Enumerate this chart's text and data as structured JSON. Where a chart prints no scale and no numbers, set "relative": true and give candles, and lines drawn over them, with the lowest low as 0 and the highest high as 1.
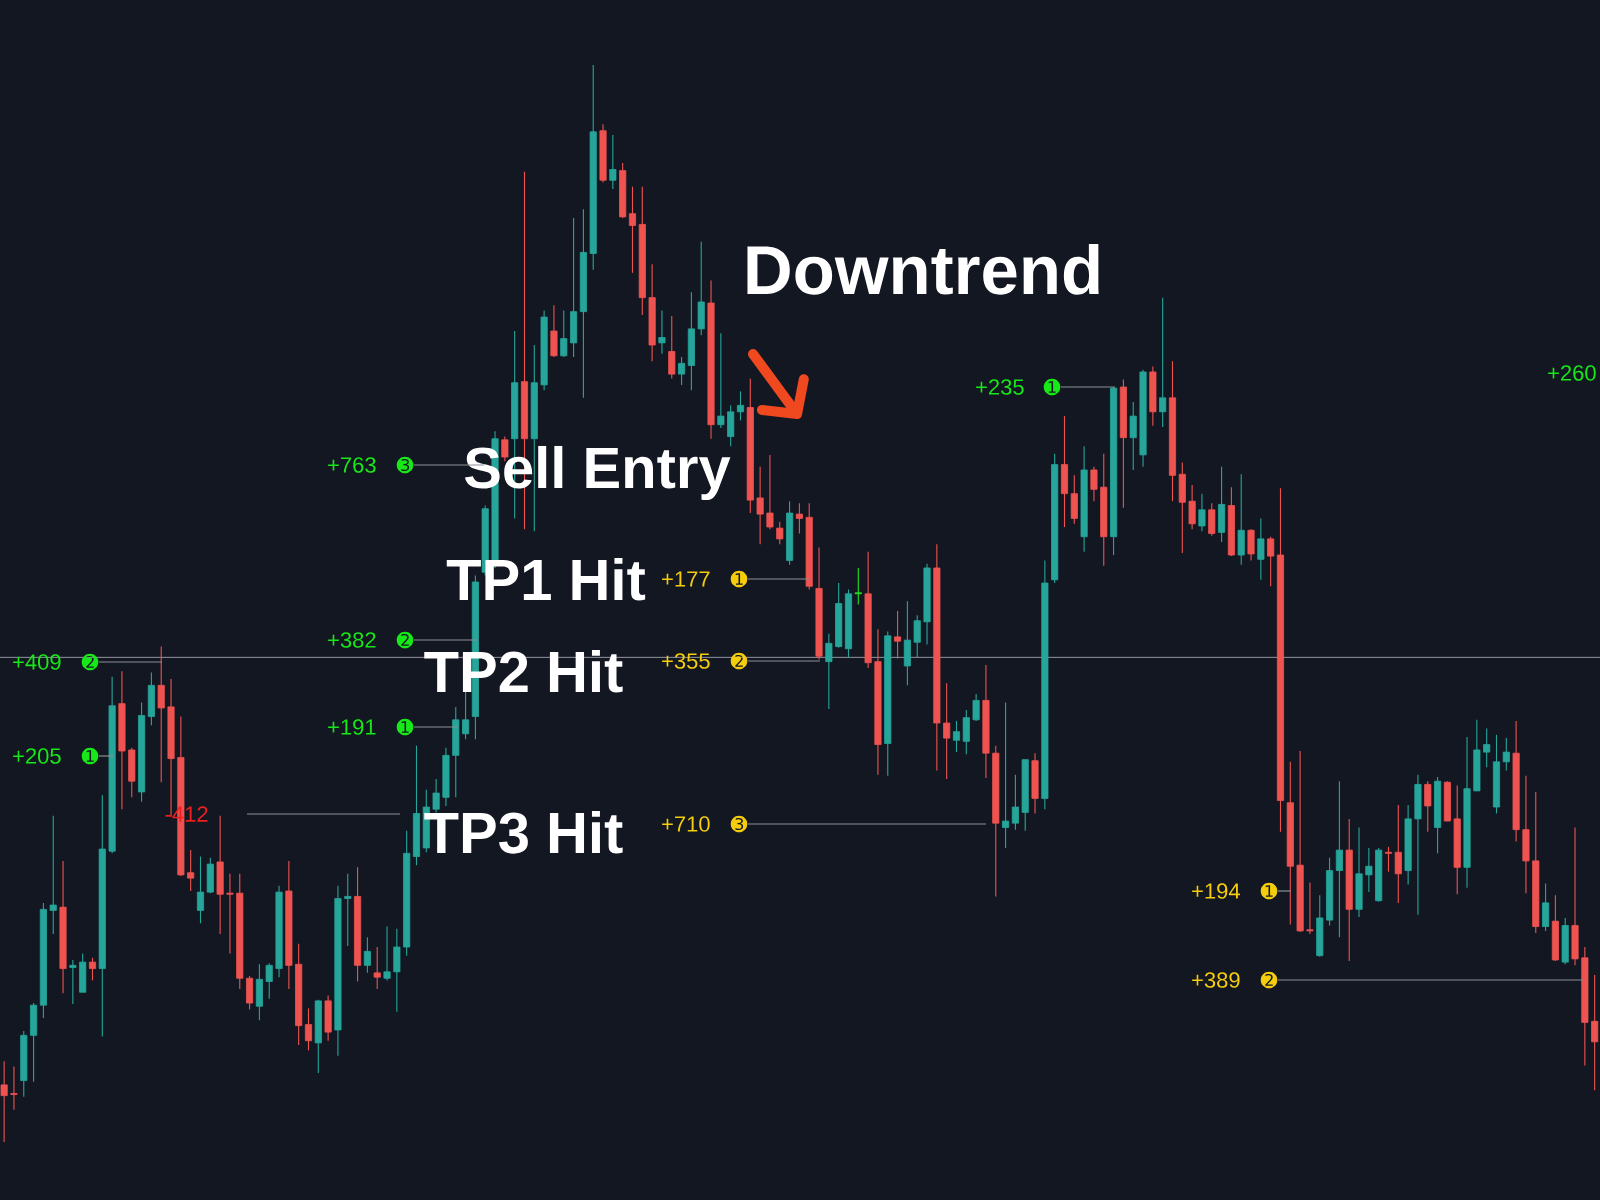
{
  "chart_data": {
    "type": "candlestick",
    "relative": true,
    "categories": [
      null,
      null,
      null,
      null,
      null,
      null,
      null,
      null,
      null,
      null,
      null,
      null,
      null,
      null,
      null,
      null,
      null,
      null,
      null,
      null,
      null,
      null,
      null,
      null,
      null,
      null,
      null,
      null,
      null,
      null,
      null,
      null,
      null,
      null,
      null,
      null,
      null,
      null,
      null,
      null,
      null,
      null,
      null,
      null,
      null,
      null,
      null,
      null,
      null,
      null,
      null,
      null,
      null,
      null,
      null,
      null,
      null,
      null,
      null,
      null,
      null,
      null,
      null,
      null,
      null,
      null,
      null,
      null,
      null,
      null,
      null,
      null,
      null,
      null,
      null,
      null,
      null,
      null,
      null,
      null,
      null,
      null,
      null,
      null,
      null,
      null,
      null,
      null,
      null,
      null,
      null,
      null,
      null,
      null,
      null,
      null,
      null,
      null,
      null,
      null,
      null,
      null,
      null,
      null,
      null,
      null,
      null,
      null,
      null,
      null,
      null,
      null,
      null,
      null,
      null,
      null,
      null,
      null,
      null,
      null,
      null,
      null,
      null,
      null,
      null,
      null,
      null,
      null,
      null,
      null,
      null,
      null,
      null,
      null,
      null,
      null,
      null,
      null,
      null,
      null,
      null,
      null,
      null,
      null,
      null,
      null,
      null,
      null,
      null,
      null,
      null,
      null,
      null,
      null,
      null,
      null,
      null,
      null,
      null,
      null,
      null,
      null,
      null
    ],
    "ohlc": [
      [
        0.053,
        0.075,
        0,
        0.043
      ],
      [
        0.045,
        0.07,
        0.03,
        0.044
      ],
      [
        0.057,
        0.103,
        0.042,
        0.099
      ],
      [
        0.099,
        0.129,
        0.056,
        0.127
      ],
      [
        0.127,
        0.222,
        0.115,
        0.216
      ],
      [
        0.215,
        0.303,
        0.193,
        0.22
      ],
      [
        0.218,
        0.261,
        0.138,
        0.161
      ],
      [
        0.162,
        0.169,
        0.128,
        0.164
      ],
      [
        0.139,
        0.175,
        0.139,
        0.167
      ],
      [
        0.167,
        0.171,
        0.15,
        0.161
      ],
      [
        0.161,
        0.322,
        0.098,
        0.272
      ],
      [
        0.27,
        0.432,
        0.268,
        0.405
      ],
      [
        0.407,
        0.437,
        0.309,
        0.363
      ],
      [
        0.364,
        0.366,
        0.32,
        0.335
      ],
      [
        0.325,
        0.408,
        0.316,
        0.396
      ],
      [
        0.395,
        0.436,
        0.387,
        0.424
      ],
      [
        0.424,
        0.46,
        0.334,
        0.403
      ],
      [
        0.404,
        0.43,
        0.302,
        0.356
      ],
      [
        0.357,
        0.395,
        0.247,
        0.248
      ],
      [
        0.25,
        0.271,
        0.233,
        0.245
      ],
      [
        0.215,
        0.265,
        0.203,
        0.232
      ],
      [
        0.232,
        0.264,
        0.231,
        0.258
      ],
      [
        0.26,
        0.303,
        0.193,
        0.23
      ],
      [
        0.231,
        0.249,
        0.175,
        0.23
      ],
      [
        0.231,
        0.249,
        0.142,
        0.152
      ],
      [
        0.152,
        0.154,
        0.123,
        0.129
      ],
      [
        0.126,
        0.165,
        0.113,
        0.151
      ],
      [
        0.149,
        0.166,
        0.133,
        0.164
      ],
      [
        0.161,
        0.238,
        0.153,
        0.232
      ],
      [
        0.233,
        0.261,
        0.142,
        0.164
      ],
      [
        0.165,
        0.184,
        0.09,
        0.108
      ],
      [
        0.109,
        0.124,
        0.085,
        0.094
      ],
      [
        0.092,
        0.132,
        0.064,
        0.131
      ],
      [
        0.131,
        0.136,
        0.094,
        0.102
      ],
      [
        0.104,
        0.238,
        0.08,
        0.226
      ],
      [
        0.226,
        0.249,
        0.182,
        0.228
      ],
      [
        0.228,
        0.255,
        0.149,
        0.164
      ],
      [
        0.164,
        0.19,
        0.157,
        0.177
      ],
      [
        0.157,
        0.181,
        0.142,
        0.153
      ],
      [
        0.152,
        0.2,
        0.15,
        0.158
      ],
      [
        0.158,
        0.198,
        0.121,
        0.181
      ],
      [
        0.181,
        0.289,
        0.173,
        0.268
      ],
      [
        0.265,
        0.368,
        0.257,
        0.305
      ],
      [
        0.273,
        0.327,
        0.269,
        0.311
      ],
      [
        0.309,
        0.337,
        0.306,
        0.324
      ],
      [
        0.32,
        0.366,
        0.312,
        0.359
      ],
      [
        0.359,
        0.404,
        0.32,
        0.392
      ],
      [
        0.379,
        0.42,
        0.374,
        0.392
      ],
      [
        0.395,
        0.526,
        0.374,
        0.52
      ],
      [
        0.529,
        0.591,
        0.526,
        0.588
      ],
      [
        0.54,
        0.66,
        0.533,
        0.653
      ],
      [
        0.652,
        0.655,
        0.632,
        0.636
      ],
      [
        0.653,
        0.753,
        0.579,
        0.705
      ],
      [
        0.706,
        0.901,
        0.569,
        0.653
      ],
      [
        0.653,
        0.74,
        0.567,
        0.705
      ],
      [
        0.703,
        0.772,
        0.698,
        0.766
      ],
      [
        0.753,
        0.777,
        0.729,
        0.73
      ],
      [
        0.73,
        0.772,
        0.729,
        0.746
      ],
      [
        0.742,
        0.858,
        0.729,
        0.771
      ],
      [
        0.771,
        0.866,
        0.691,
        0.826
      ],
      [
        0.825,
        1,
        0.81,
        0.938
      ],
      [
        0.939,
        0.945,
        0.891,
        0.893
      ],
      [
        0.893,
        0.935,
        0.885,
        0.903
      ],
      [
        0.902,
        0.909,
        0.858,
        0.859
      ],
      [
        0.862,
        0.887,
        0.807,
        0.851
      ],
      [
        0.852,
        0.887,
        0.768,
        0.784
      ],
      [
        0.784,
        0.815,
        0.725,
        0.74
      ],
      [
        0.742,
        0.772,
        0.732,
        0.747
      ],
      [
        0.734,
        0.767,
        0.709,
        0.713
      ],
      [
        0.713,
        0.729,
        0.703,
        0.723
      ],
      [
        0.721,
        0.789,
        0.698,
        0.755
      ],
      [
        0.755,
        0.836,
        0.749,
        0.78
      ],
      [
        0.779,
        0.8,
        0.653,
        0.666
      ],
      [
        0.666,
        0.751,
        0.663,
        0.674
      ],
      [
        0.655,
        0.684,
        0.646,
        0.678
      ],
      [
        0.678,
        0.697,
        0.67,
        0.684
      ],
      [
        0.682,
        0.709,
        0.584,
        0.596
      ],
      [
        0.598,
        0.627,
        0.555,
        0.583
      ],
      [
        0.584,
        0.638,
        0.569,
        0.571
      ],
      [
        0.57,
        0.576,
        0.555,
        0.56
      ],
      [
        0.54,
        0.595,
        0.536,
        0.584
      ],
      [
        0.583,
        0.593,
        0.565,
        0.579
      ],
      [
        0.58,
        0.593,
        0.513,
        0.516
      ],
      [
        0.514,
        0.552,
        0.448,
        0.451
      ],
      [
        0.446,
        0.472,
        0.402,
        0.463
      ],
      [
        0.46,
        0.519,
        0.459,
        0.5
      ],
      [
        0.458,
        0.513,
        0.45,
        0.509
      ],
      [
        0.509,
        0.533,
        0.499,
        0.51
      ],
      [
        0.509,
        0.548,
        0.44,
        0.445
      ],
      [
        0.446,
        0.476,
        0.341,
        0.369
      ],
      [
        0.37,
        0.474,
        0.34,
        0.47
      ],
      [
        0.469,
        0.493,
        0.449,
        0.465
      ],
      [
        0.442,
        0.502,
        0.424,
        0.466
      ],
      [
        0.464,
        0.489,
        0.45,
        0.484
      ],
      [
        0.483,
        0.537,
        0.462,
        0.533
      ],
      [
        0.533,
        0.555,
        0.345,
        0.389
      ],
      [
        0.389,
        0.426,
        0.337,
        0.375
      ],
      [
        0.373,
        0.391,
        0.362,
        0.381
      ],
      [
        0.372,
        0.401,
        0.36,
        0.394
      ],
      [
        0.392,
        0.416,
        0.391,
        0.41
      ],
      [
        0.41,
        0.443,
        0.338,
        0.361
      ],
      [
        0.361,
        0.368,
        0.228,
        0.296
      ],
      [
        0.292,
        0.408,
        0.273,
        0.298
      ],
      [
        0.296,
        0.341,
        0.29,
        0.311
      ],
      [
        0.306,
        0.355,
        0.289,
        0.355
      ],
      [
        0.354,
        0.361,
        0.305,
        0.319
      ],
      [
        0.319,
        0.54,
        0.309,
        0.519
      ],
      [
        0.522,
        0.639,
        0.519,
        0.629
      ],
      [
        0.629,
        0.674,
        0.571,
        0.602
      ],
      [
        0.602,
        0.619,
        0.574,
        0.579
      ],
      [
        0.562,
        0.646,
        0.548,
        0.624
      ],
      [
        0.624,
        0.627,
        0.595,
        0.606
      ],
      [
        0.608,
        0.639,
        0.535,
        0.562
      ],
      [
        0.562,
        0.701,
        0.545,
        0.7
      ],
      [
        0.701,
        0.708,
        0.589,
        0.654
      ],
      [
        0.654,
        0.687,
        0.624,
        0.674
      ],
      [
        0.638,
        0.717,
        0.627,
        0.715
      ],
      [
        0.715,
        0.72,
        0.665,
        0.678
      ],
      [
        0.678,
        0.784,
        0.664,
        0.691
      ],
      [
        0.691,
        0.725,
        0.595,
        0.619
      ],
      [
        0.62,
        0.631,
        0.547,
        0.594
      ],
      [
        0.595,
        0.61,
        0.569,
        0.574
      ],
      [
        0.572,
        0.602,
        0.567,
        0.587
      ],
      [
        0.587,
        0.593,
        0.563,
        0.565
      ],
      [
        0.566,
        0.627,
        0.557,
        0.592
      ],
      [
        0.591,
        0.608,
        0.544,
        0.545
      ],
      [
        0.545,
        0.62,
        0.536,
        0.568
      ],
      [
        0.568,
        0.569,
        0.54,
        0.546
      ],
      [
        0.541,
        0.579,
        0.522,
        0.56
      ],
      [
        0.56,
        0.562,
        0.516,
        0.544
      ],
      [
        0.545,
        0.607,
        0.288,
        0.317
      ],
      [
        0.315,
        0.353,
        0.202,
        0.256
      ],
      [
        0.257,
        0.363,
        0.195,
        0.196
      ],
      [
        0.197,
        0.241,
        0.193,
        0.196
      ],
      [
        0.173,
        0.229,
        0.172,
        0.208
      ],
      [
        0.206,
        0.264,
        0.201,
        0.252
      ],
      [
        0.252,
        0.335,
        0.19,
        0.271
      ],
      [
        0.271,
        0.3,
        0.168,
        0.216
      ],
      [
        0.216,
        0.292,
        0.209,
        0.249
      ],
      [
        0.248,
        0.273,
        0.232,
        0.256
      ],
      [
        0.224,
        0.273,
        0.223,
        0.271
      ],
      [
        0.269,
        0.274,
        0.251,
        0.268
      ],
      [
        0.269,
        0.313,
        0.222,
        0.249
      ],
      [
        0.252,
        0.313,
        0.239,
        0.3
      ],
      [
        0.3,
        0.341,
        0.211,
        0.332
      ],
      [
        0.332,
        0.335,
        0.288,
        0.312
      ],
      [
        0.292,
        0.339,
        0.268,
        0.335
      ],
      [
        0.334,
        0.335,
        0.298,
        0.298
      ],
      [
        0.3,
        0.331,
        0.23,
        0.255
      ],
      [
        0.255,
        0.376,
        0.236,
        0.328
      ],
      [
        0.326,
        0.392,
        0.326,
        0.364
      ],
      [
        0.362,
        0.384,
        0.348,
        0.369
      ],
      [
        0.311,
        0.378,
        0.305,
        0.353
      ],
      [
        0.353,
        0.375,
        0.345,
        0.362
      ],
      [
        0.361,
        0.391,
        0.279,
        0.29
      ],
      [
        0.29,
        0.34,
        0.231,
        0.261
      ],
      [
        0.261,
        0.325,
        0.194,
        0.2
      ],
      [
        0.2,
        0.24,
        0.196,
        0.222
      ],
      [
        0.205,
        0.229,
        0.168,
        0.169
      ],
      [
        0.167,
        0.208,
        0.165,
        0.201
      ],
      [
        0.201,
        0.292,
        0.164,
        0.17
      ],
      [
        0.171,
        0.181,
        0.071,
        0.111
      ],
      [
        0.112,
        0.155,
        0.048,
        0.093
      ]
    ],
    "colors": [
      "#ef5350",
      "#ef5350",
      "#26a69a",
      "#26a69a",
      "#26a69a",
      "#26a69a",
      "#ef5350",
      "#26a69a",
      "#26a69a",
      "#ef5350",
      "#26a69a",
      "#26a69a",
      "#ef5350",
      "#ef5350",
      "#26a69a",
      "#26a69a",
      "#ef5350",
      "#ef5350",
      "#ef5350",
      "#ef5350",
      "#26a69a",
      "#26a69a",
      "#ef5350",
      "#ef5350",
      "#ef5350",
      "#ef5350",
      "#26a69a",
      "#26a69a",
      "#26a69a",
      "#ef5350",
      "#ef5350",
      "#ef5350",
      "#26a69a",
      "#ef5350",
      "#26a69a",
      "#26a69a",
      "#ef5350",
      "#26a69a",
      "#ef5350",
      "#26a69a",
      "#26a69a",
      "#26a69a",
      "#26a69a",
      "#26a69a",
      "#26a69a",
      "#26a69a",
      "#26a69a",
      "#26a69a",
      "#26a69a",
      "#26a69a",
      "#26a69a",
      "#ef5350",
      "#26a69a",
      "#ef5350",
      "#26a69a",
      "#26a69a",
      "#ef5350",
      "#26a69a",
      "#26a69a",
      "#26a69a",
      "#26a69a",
      "#ef5350",
      "#26a69a",
      "#ef5350",
      "#ef5350",
      "#ef5350",
      "#ef5350",
      "#26a69a",
      "#ef5350",
      "#26a69a",
      "#26a69a",
      "#26a69a",
      "#ef5350",
      "#26a69a",
      "#26a69a",
      "#26a69a",
      "#ef5350",
      "#ef5350",
      "#ef5350",
      "#ef5350",
      "#26a69a",
      "#ef5350",
      "#ef5350",
      "#ef5350",
      "#26a69a",
      "#26a69a",
      "#26a69a",
      "#22e022",
      "#ef5350",
      "#ef5350",
      "#26a69a",
      "#ef5350",
      "#26a69a",
      "#26a69a",
      "#26a69a",
      "#ef5350",
      "#ef5350",
      "#26a69a",
      "#26a69a",
      "#26a69a",
      "#ef5350",
      "#ef5350",
      "#26a69a",
      "#26a69a",
      "#26a69a",
      "#ef5350",
      "#26a69a",
      "#26a69a",
      "#ef5350",
      "#ef5350",
      "#26a69a",
      "#ef5350",
      "#ef5350",
      "#26a69a",
      "#ef5350",
      "#26a69a",
      "#26a69a",
      "#ef5350",
      "#26a69a",
      "#ef5350",
      "#ef5350",
      "#ef5350",
      "#26a69a",
      "#ef5350",
      "#26a69a",
      "#ef5350",
      "#26a69a",
      "#ef5350",
      "#26a69a",
      "#ef5350",
      "#ef5350",
      "#ef5350",
      "#ef5350",
      "#ef5350",
      "#26a69a",
      "#26a69a",
      "#26a69a",
      "#ef5350",
      "#26a69a",
      "#26a69a",
      "#26a69a",
      "#ef5350",
      "#ef5350",
      "#26a69a",
      "#26a69a",
      "#ef5350",
      "#26a69a",
      "#ef5350",
      "#ef5350",
      "#26a69a",
      "#26a69a",
      "#26a69a",
      "#26a69a",
      "#26a69a",
      "#ef5350",
      "#ef5350",
      "#ef5350",
      "#26a69a",
      "#ef5350",
      "#26a69a",
      "#ef5350",
      "#ef5350",
      "#ef5350"
    ],
    "ref_lines": [
      {
        "axis": "y",
        "value": 0.45,
        "color": "#a3a6af"
      }
    ],
    "annotations": [
      "Downtrend",
      "Sell Entry",
      "TP1 Hit",
      "TP2 Hit",
      "TP3 Hit",
      "+409",
      "➋",
      "+205",
      "➊",
      "-412",
      "+763",
      "➌",
      "+382",
      "➋",
      "+191",
      "➊",
      "+177",
      "➊",
      "+355",
      "➋",
      "+710",
      "➌",
      "+235",
      "➊",
      "+260",
      "+194",
      "➊",
      "+389",
      "➋"
    ]
  }
}
